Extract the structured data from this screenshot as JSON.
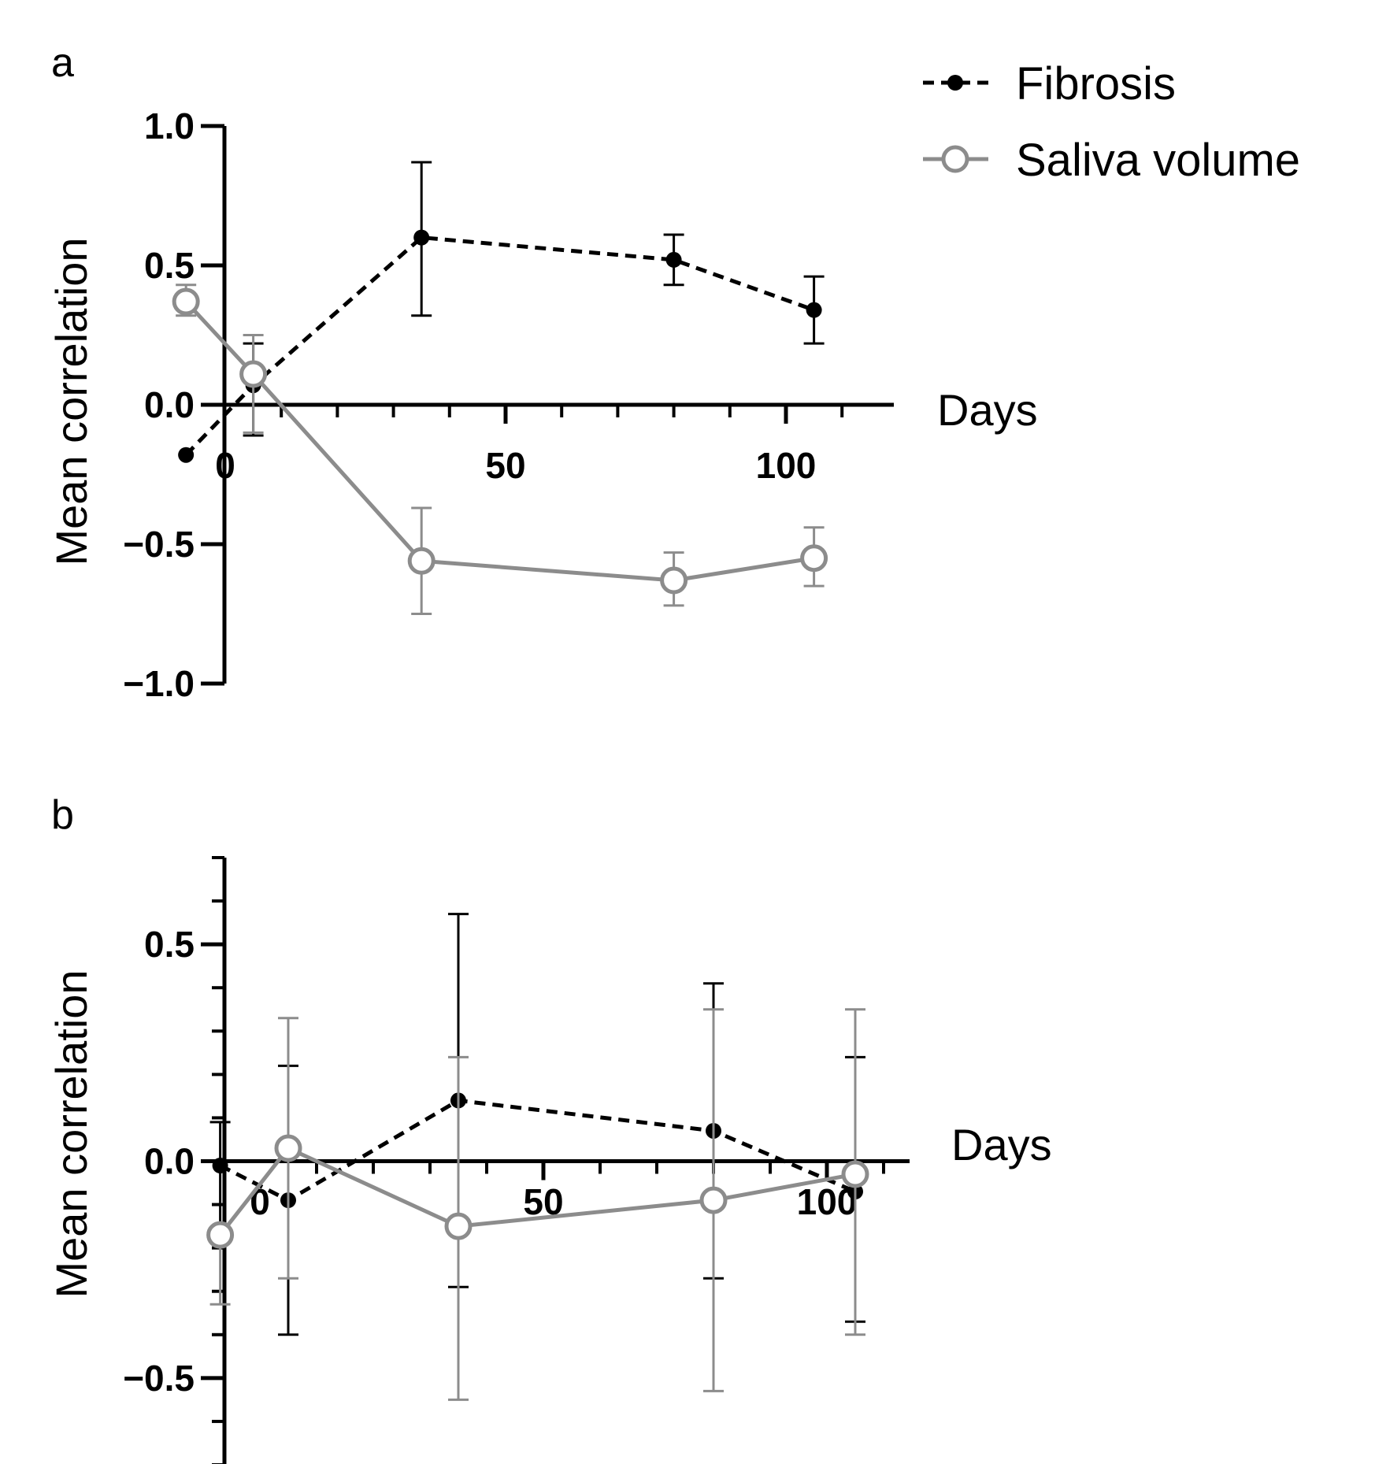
{
  "legend": {
    "position": "top-right",
    "entries": [
      {
        "label": "Fibrosis",
        "color": "#000000",
        "style": "dashed",
        "marker": "filled-circle"
      },
      {
        "label": "Saliva volume",
        "color": "#8c8c8c",
        "style": "solid",
        "marker": "open-circle"
      }
    ]
  },
  "chart_data": [
    {
      "panel": "a",
      "type": "line",
      "xlabel": "Days",
      "ylabel": "Mean correlation",
      "xlim": [
        -15,
        110
      ],
      "ylim": [
        -1.0,
        1.0
      ],
      "x_ticks": [
        0,
        50,
        100
      ],
      "x_ticklabels": [
        "0",
        "50",
        "100"
      ],
      "y_ticks": [
        -1.0,
        -0.5,
        0.0,
        0.5,
        1.0
      ],
      "y_ticklabels": [
        "−1.0",
        "−0.5",
        "0.0",
        "0.5",
        "1.0"
      ],
      "grid": false,
      "series": [
        {
          "name": "Fibrosis",
          "color": "#000000",
          "x": [
            -7,
            5,
            35,
            80,
            105
          ],
          "y": [
            -0.18,
            0.07,
            0.6,
            0.52,
            0.34
          ],
          "err_low": [
            null,
            0.18,
            0.28,
            0.09,
            0.12
          ],
          "err_high": [
            null,
            0.15,
            0.27,
            0.09,
            0.12
          ]
        },
        {
          "name": "Saliva volume",
          "color": "#8c8c8c",
          "x": [
            -7,
            5,
            35,
            80,
            105
          ],
          "y": [
            0.37,
            0.11,
            -0.56,
            -0.63,
            -0.55
          ],
          "err_low": [
            0.05,
            0.21,
            0.19,
            0.09,
            0.1
          ],
          "err_high": [
            0.06,
            0.14,
            0.19,
            0.1,
            0.11
          ]
        }
      ]
    },
    {
      "panel": "b",
      "type": "line",
      "xlabel": "Days",
      "ylabel": "Mean correlation",
      "xlim": [
        -15,
        110
      ],
      "ylim": [
        -0.7,
        0.7
      ],
      "x_ticks": [
        0,
        50,
        100
      ],
      "x_ticklabels": [
        "0",
        "50",
        "100"
      ],
      "y_ticks": [
        -0.5,
        0.0,
        0.5
      ],
      "y_ticklabels": [
        "−0.5",
        "0.0",
        "0.5"
      ],
      "grid": false,
      "series": [
        {
          "name": "Fibrosis",
          "color": "#000000",
          "x": [
            -7,
            5,
            35,
            80,
            105
          ],
          "y": [
            -0.01,
            -0.09,
            0.14,
            0.07,
            -0.07
          ],
          "err_low": [
            0.15,
            0.31,
            0.43,
            0.34,
            0.3
          ],
          "err_high": [
            0.1,
            0.31,
            0.43,
            0.34,
            0.31
          ]
        },
        {
          "name": "Saliva volume",
          "color": "#8c8c8c",
          "x": [
            -7,
            5,
            35,
            80,
            105
          ],
          "y": [
            -0.17,
            0.03,
            -0.15,
            -0.09,
            -0.03
          ],
          "err_low": [
            0.16,
            0.3,
            0.4,
            0.44,
            0.37
          ],
          "err_high": [
            null,
            0.3,
            0.39,
            0.44,
            0.38
          ]
        }
      ]
    }
  ]
}
